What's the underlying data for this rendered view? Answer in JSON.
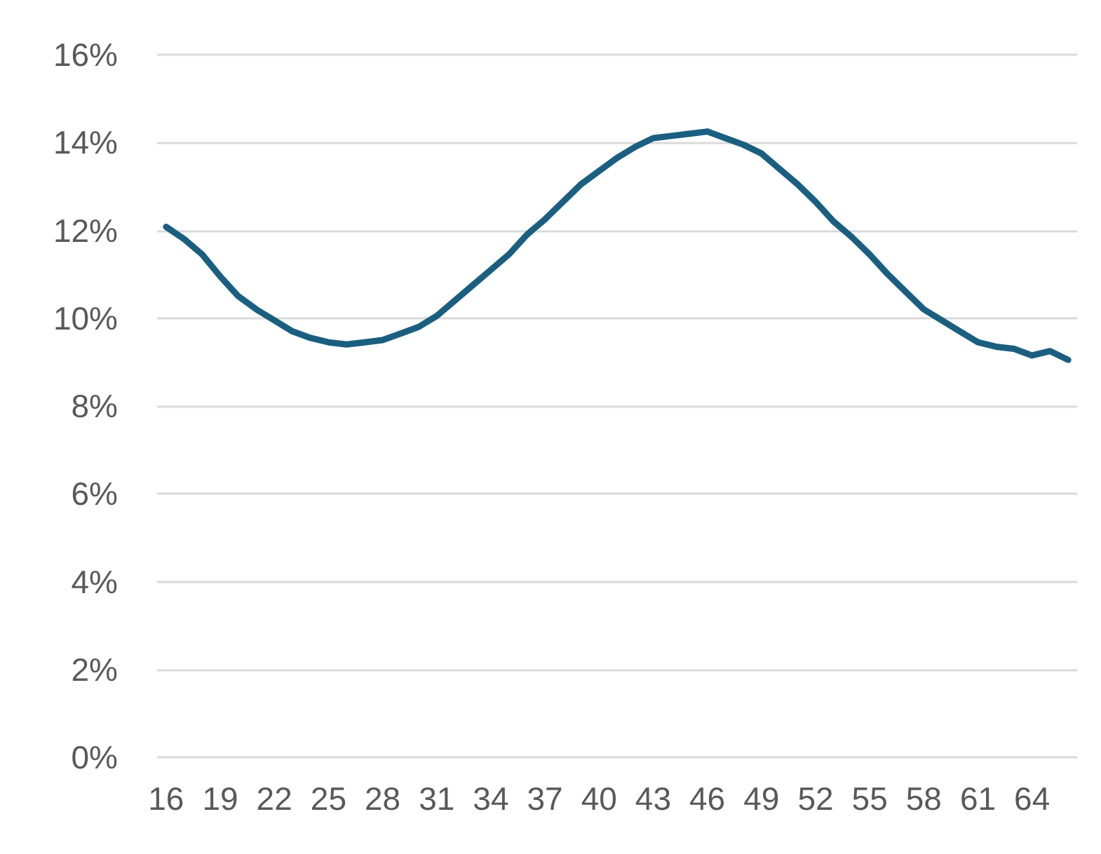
{
  "chart_data": {
    "type": "line",
    "categories": [
      "16",
      null,
      null,
      "19",
      null,
      null,
      "22",
      null,
      null,
      "25",
      null,
      null,
      "28",
      null,
      null,
      "31",
      null,
      null,
      "34",
      null,
      null,
      "37",
      null,
      null,
      "40",
      null,
      null,
      "43",
      null,
      null,
      "46",
      null,
      null,
      "49",
      null,
      null,
      "52",
      null,
      null,
      "55",
      null,
      null,
      "58",
      null,
      null,
      "61",
      null,
      null,
      "64",
      null,
      null
    ],
    "series": [
      {
        "color": "#1a5f80",
        "values": [
          12.08,
          11.8,
          11.45,
          10.95,
          10.5,
          10.2,
          9.95,
          9.7,
          9.55,
          9.45,
          9.4,
          9.45,
          9.5,
          9.65,
          9.8,
          10.05,
          10.4,
          10.75,
          11.1,
          11.45,
          11.9,
          12.25,
          12.65,
          13.05,
          13.35,
          13.65,
          13.9,
          14.1,
          14.15,
          14.2,
          14.25,
          14.1,
          13.95,
          13.75,
          13.4,
          13.05,
          12.65,
          12.2,
          11.85,
          11.45,
          11.0,
          10.6,
          10.2,
          9.95,
          9.7,
          9.45,
          9.35,
          9.3,
          9.15,
          9.25,
          9.05
        ]
      }
    ],
    "ylim": [
      0,
      16
    ],
    "yticks": [
      {
        "value": 0,
        "label": "0%"
      },
      {
        "value": 2,
        "label": "2%"
      },
      {
        "value": 4,
        "label": "4%"
      },
      {
        "value": 6,
        "label": "6%"
      },
      {
        "value": 8,
        "label": "8%"
      },
      {
        "value": 10,
        "label": "10%"
      },
      {
        "value": 12,
        "label": "12%"
      },
      {
        "value": 14,
        "label": "14%"
      },
      {
        "value": 16,
        "label": "16%"
      }
    ],
    "grid": "y",
    "marker": "none",
    "line_style": "solid"
  }
}
